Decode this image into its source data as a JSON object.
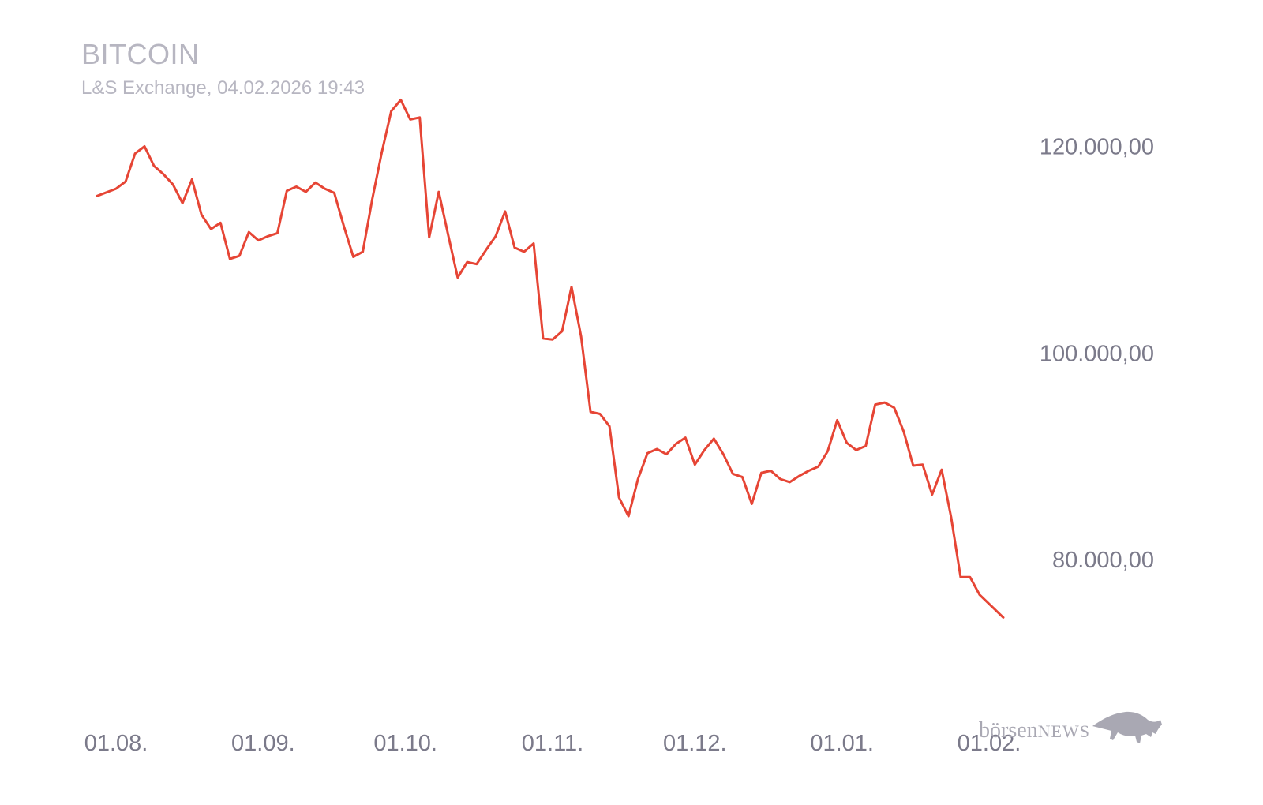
{
  "title": "BITCOIN",
  "subtitle": "L&S Exchange, 04.02.2026 19:43",
  "logo": {
    "text_main": "börsen",
    "text_accent": "NEWS",
    "icon": "bull-icon"
  },
  "colors": {
    "line": "#e64535",
    "title": "#b7b6c1",
    "tick": "#7b7a8a",
    "logo": "#a9a8b3"
  },
  "chart_data": {
    "type": "line",
    "title": "BITCOIN",
    "subtitle": "L&S Exchange, 04.02.2026 19:43",
    "xlabel": "",
    "ylabel": "",
    "grid": false,
    "legend": "none",
    "ylim": [
      70000,
      125000
    ],
    "y_ticks": [
      {
        "value": 120000,
        "label": "120.000,00"
      },
      {
        "value": 100000,
        "label": "100.000,00"
      },
      {
        "value": 80000,
        "label": "80.000,00"
      }
    ],
    "x_ticks": [
      {
        "value": "2025-08-01",
        "label": "01.08."
      },
      {
        "value": "2025-09-01",
        "label": "01.09."
      },
      {
        "value": "2025-10-01",
        "label": "01.10."
      },
      {
        "value": "2025-11-01",
        "label": "01.11."
      },
      {
        "value": "2025-12-01",
        "label": "01.12."
      },
      {
        "value": "2026-01-01",
        "label": "01.01."
      },
      {
        "value": "2026-02-01",
        "label": "01.02."
      }
    ],
    "series": [
      {
        "values": [
          [
            "2025-07-28",
            115200
          ],
          [
            "2025-08-01",
            115900
          ],
          [
            "2025-08-03",
            116600
          ],
          [
            "2025-08-05",
            119300
          ],
          [
            "2025-08-07",
            120000
          ],
          [
            "2025-08-09",
            118100
          ],
          [
            "2025-08-11",
            117300
          ],
          [
            "2025-08-13",
            116300
          ],
          [
            "2025-08-15",
            114500
          ],
          [
            "2025-08-17",
            116800
          ],
          [
            "2025-08-19",
            113400
          ],
          [
            "2025-08-21",
            112000
          ],
          [
            "2025-08-23",
            112600
          ],
          [
            "2025-08-25",
            109100
          ],
          [
            "2025-08-27",
            109400
          ],
          [
            "2025-08-29",
            111700
          ],
          [
            "2025-08-31",
            110900
          ],
          [
            "2025-09-02",
            111300
          ],
          [
            "2025-09-04",
            111600
          ],
          [
            "2025-09-06",
            115700
          ],
          [
            "2025-09-08",
            116100
          ],
          [
            "2025-09-10",
            115600
          ],
          [
            "2025-09-12",
            116500
          ],
          [
            "2025-09-14",
            115900
          ],
          [
            "2025-09-16",
            115500
          ],
          [
            "2025-09-18",
            112300
          ],
          [
            "2025-09-20",
            109300
          ],
          [
            "2025-09-22",
            109800
          ],
          [
            "2025-09-24",
            114900
          ],
          [
            "2025-09-26",
            119400
          ],
          [
            "2025-09-28",
            123400
          ],
          [
            "2025-09-30",
            124500
          ],
          [
            "2025-10-02",
            122600
          ],
          [
            "2025-10-04",
            122800
          ],
          [
            "2025-10-06",
            111200
          ],
          [
            "2025-10-08",
            115600
          ],
          [
            "2025-10-10",
            111400
          ],
          [
            "2025-10-12",
            107300
          ],
          [
            "2025-10-14",
            108800
          ],
          [
            "2025-10-16",
            108600
          ],
          [
            "2025-10-18",
            110000
          ],
          [
            "2025-10-20",
            111300
          ],
          [
            "2025-10-22",
            113700
          ],
          [
            "2025-10-24",
            110200
          ],
          [
            "2025-10-26",
            109800
          ],
          [
            "2025-10-28",
            110600
          ],
          [
            "2025-10-30",
            101400
          ],
          [
            "2025-11-01",
            101300
          ],
          [
            "2025-11-03",
            102100
          ],
          [
            "2025-11-05",
            106400
          ],
          [
            "2025-11-07",
            101600
          ],
          [
            "2025-11-09",
            94300
          ],
          [
            "2025-11-11",
            94100
          ],
          [
            "2025-11-13",
            92900
          ],
          [
            "2025-11-15",
            86000
          ],
          [
            "2025-11-17",
            84200
          ],
          [
            "2025-11-19",
            87800
          ],
          [
            "2025-11-21",
            90300
          ],
          [
            "2025-11-23",
            90700
          ],
          [
            "2025-11-25",
            90200
          ],
          [
            "2025-11-27",
            91200
          ],
          [
            "2025-11-29",
            91800
          ],
          [
            "2025-12-01",
            89200
          ],
          [
            "2025-12-03",
            90600
          ],
          [
            "2025-12-05",
            91700
          ],
          [
            "2025-12-07",
            90200
          ],
          [
            "2025-12-09",
            88300
          ],
          [
            "2025-12-11",
            88000
          ],
          [
            "2025-12-13",
            85400
          ],
          [
            "2025-12-15",
            88400
          ],
          [
            "2025-12-17",
            88600
          ],
          [
            "2025-12-19",
            87800
          ],
          [
            "2025-12-21",
            87500
          ],
          [
            "2025-12-23",
            88100
          ],
          [
            "2025-12-25",
            88600
          ],
          [
            "2025-12-27",
            89000
          ],
          [
            "2025-12-29",
            90500
          ],
          [
            "2025-12-31",
            93500
          ],
          [
            "2026-01-02",
            91300
          ],
          [
            "2026-01-04",
            90600
          ],
          [
            "2026-01-06",
            91000
          ],
          [
            "2026-01-08",
            95000
          ],
          [
            "2026-01-10",
            95200
          ],
          [
            "2026-01-12",
            94700
          ],
          [
            "2026-01-14",
            92400
          ],
          [
            "2026-01-16",
            89100
          ],
          [
            "2026-01-18",
            89200
          ],
          [
            "2026-01-20",
            86300
          ],
          [
            "2026-01-22",
            88700
          ],
          [
            "2026-01-24",
            84100
          ],
          [
            "2026-01-26",
            78300
          ],
          [
            "2026-01-28",
            78300
          ],
          [
            "2026-01-30",
            76600
          ],
          [
            "2026-02-04",
            74400
          ]
        ]
      }
    ]
  }
}
